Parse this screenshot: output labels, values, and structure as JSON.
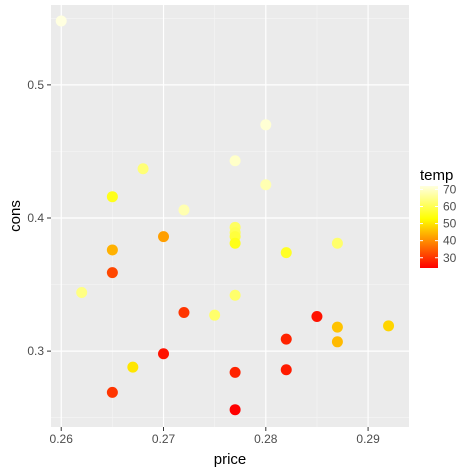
{
  "chart_data": {
    "type": "scatter",
    "xlabel": "price",
    "ylabel": "cons",
    "xlim": [
      0.259,
      0.294
    ],
    "ylim": [
      0.243,
      0.56
    ],
    "x_ticks": [
      0.26,
      0.27,
      0.28,
      0.29
    ],
    "x_tick_labels": [
      "0.26",
      "0.27",
      "0.28",
      "0.29"
    ],
    "y_ticks": [
      0.3,
      0.4,
      0.5
    ],
    "y_tick_labels": [
      "0.3",
      "0.4",
      "0.5"
    ],
    "grid": true,
    "legend": {
      "title": "temp",
      "placement": "right",
      "range": [
        24,
        72
      ],
      "ticks": [
        30,
        40,
        50,
        60,
        70
      ],
      "tick_labels": [
        "30",
        "40",
        "50",
        "60",
        "70"
      ],
      "colors": {
        "low": "#ff0000",
        "mid": "#ffff00",
        "high": "#ffffe0"
      }
    },
    "points": [
      {
        "x": 0.26,
        "y": 0.548,
        "temp": 72
      },
      {
        "x": 0.262,
        "y": 0.344,
        "temp": 64
      },
      {
        "x": 0.265,
        "y": 0.416,
        "temp": 55
      },
      {
        "x": 0.265,
        "y": 0.376,
        "temp": 44
      },
      {
        "x": 0.265,
        "y": 0.359,
        "temp": 32
      },
      {
        "x": 0.265,
        "y": 0.269,
        "temp": 30
      },
      {
        "x": 0.267,
        "y": 0.288,
        "temp": 50
      },
      {
        "x": 0.268,
        "y": 0.437,
        "temp": 63
      },
      {
        "x": 0.27,
        "y": 0.386,
        "temp": 42
      },
      {
        "x": 0.27,
        "y": 0.298,
        "temp": 26
      },
      {
        "x": 0.272,
        "y": 0.406,
        "temp": 68
      },
      {
        "x": 0.272,
        "y": 0.329,
        "temp": 30
      },
      {
        "x": 0.275,
        "y": 0.327,
        "temp": 62
      },
      {
        "x": 0.277,
        "y": 0.443,
        "temp": 70
      },
      {
        "x": 0.277,
        "y": 0.393,
        "temp": 61
      },
      {
        "x": 0.277,
        "y": 0.389,
        "temp": 60
      },
      {
        "x": 0.277,
        "y": 0.386,
        "temp": 58
      },
      {
        "x": 0.277,
        "y": 0.381,
        "temp": 55
      },
      {
        "x": 0.277,
        "y": 0.342,
        "temp": 62
      },
      {
        "x": 0.277,
        "y": 0.284,
        "temp": 28
      },
      {
        "x": 0.277,
        "y": 0.256,
        "temp": 24
      },
      {
        "x": 0.28,
        "y": 0.47,
        "temp": 71
      },
      {
        "x": 0.28,
        "y": 0.425,
        "temp": 68
      },
      {
        "x": 0.282,
        "y": 0.374,
        "temp": 56
      },
      {
        "x": 0.282,
        "y": 0.309,
        "temp": 28
      },
      {
        "x": 0.282,
        "y": 0.286,
        "temp": 27
      },
      {
        "x": 0.285,
        "y": 0.326,
        "temp": 26
      },
      {
        "x": 0.287,
        "y": 0.381,
        "temp": 62
      },
      {
        "x": 0.287,
        "y": 0.318,
        "temp": 46
      },
      {
        "x": 0.287,
        "y": 0.307,
        "temp": 45
      },
      {
        "x": 0.292,
        "y": 0.319,
        "temp": 48
      }
    ]
  }
}
